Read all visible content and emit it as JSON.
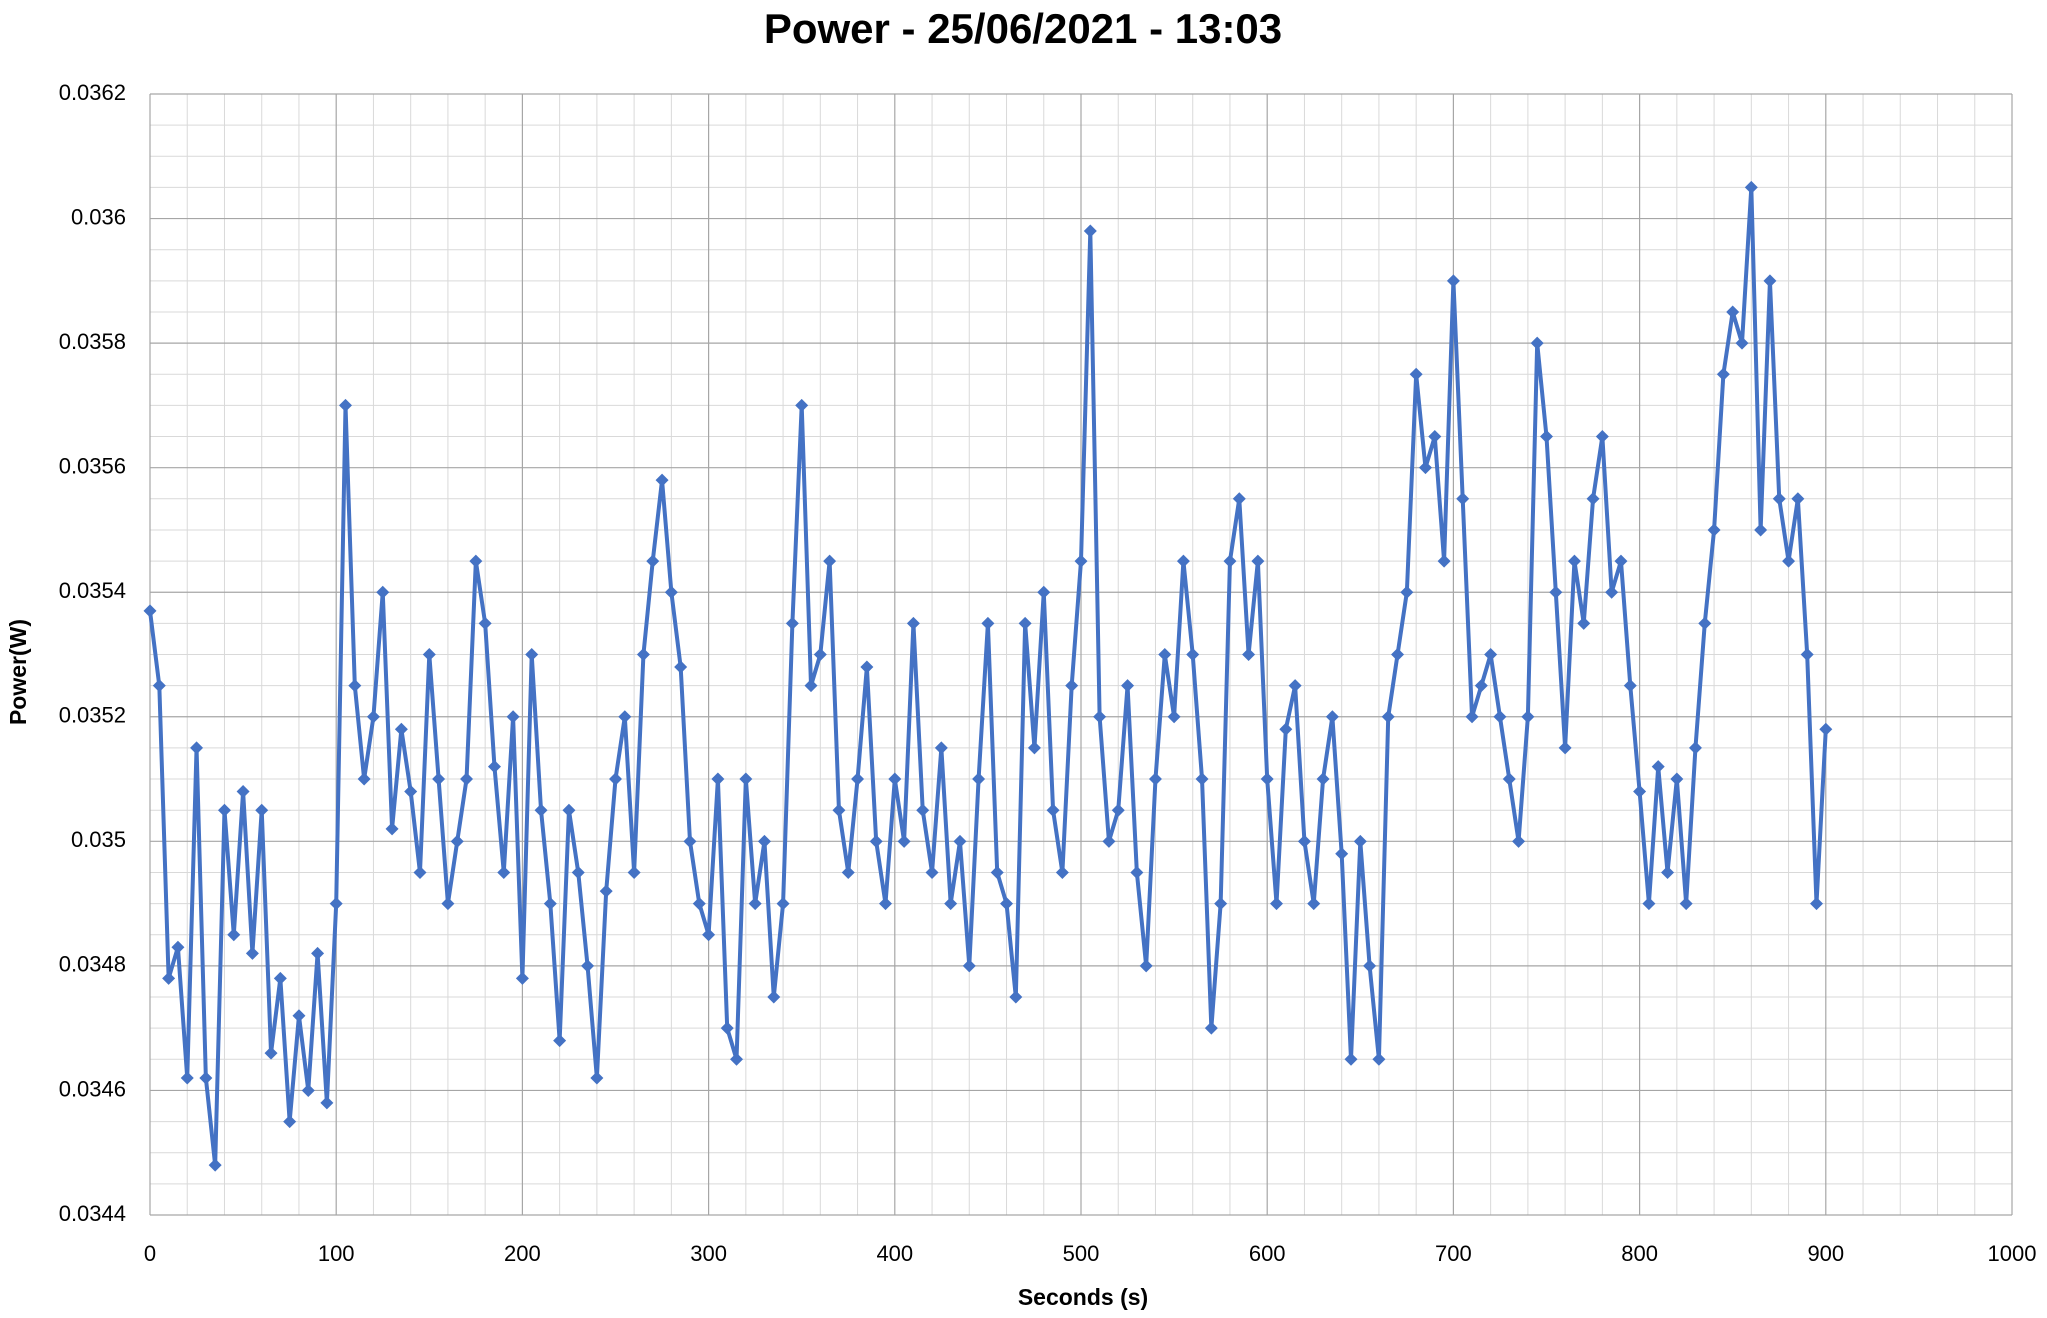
{
  "chart_data": {
    "type": "line",
    "title": "Power - 25/06/2021 - 13:03",
    "x_label": "Seconds (s)",
    "y_label": "Power(W)",
    "xlim": [
      0,
      1000
    ],
    "xticks": [
      0,
      100,
      200,
      300,
      400,
      500,
      600,
      700,
      800,
      900,
      1000
    ],
    "ylim": [
      0.0344,
      0.0362
    ],
    "yticks": [
      0.0344,
      0.0346,
      0.0348,
      0.035,
      0.0352,
      0.0354,
      0.0356,
      0.0358,
      0.036,
      0.0362
    ],
    "grid": true,
    "minor_grid": true,
    "marker": "diamond",
    "series": [
      {
        "name": "Power",
        "color": "#4472c4",
        "x": [
          0,
          5,
          10,
          15,
          20,
          25,
          30,
          35,
          40,
          45,
          50,
          55,
          60,
          65,
          70,
          75,
          80,
          85,
          90,
          95,
          100,
          105,
          110,
          115,
          120,
          125,
          130,
          135,
          140,
          145,
          150,
          155,
          160,
          165,
          170,
          175,
          180,
          185,
          190,
          195,
          200,
          205,
          210,
          215,
          220,
          225,
          230,
          235,
          240,
          245,
          250,
          255,
          260,
          265,
          270,
          275,
          280,
          285,
          290,
          295,
          300,
          305,
          310,
          315,
          320,
          325,
          330,
          335,
          340,
          345,
          350,
          355,
          360,
          365,
          370,
          375,
          380,
          385,
          390,
          395,
          400,
          405,
          410,
          415,
          420,
          425,
          430,
          435,
          440,
          445,
          450,
          455,
          460,
          465,
          470,
          475,
          480,
          485,
          490,
          495,
          500,
          505,
          510,
          515,
          520,
          525,
          530,
          535,
          540,
          545,
          550,
          555,
          560,
          565,
          570,
          575,
          580,
          585,
          590,
          595,
          600,
          605,
          610,
          615,
          620,
          625,
          630,
          635,
          640,
          645,
          650,
          655,
          660,
          665,
          670,
          675,
          680,
          685,
          690,
          695,
          700,
          705,
          710,
          715,
          720,
          725,
          730,
          735,
          740,
          745,
          750,
          755,
          760,
          765,
          770,
          775,
          780,
          785,
          790,
          795,
          800,
          805,
          810,
          815,
          820,
          825,
          830,
          835,
          840,
          845,
          850,
          855,
          860,
          865,
          870,
          875,
          880,
          885,
          890,
          895,
          900
        ],
        "values": [
          0.03537,
          0.03525,
          0.03478,
          0.03483,
          0.03462,
          0.03515,
          0.03462,
          0.03448,
          0.03505,
          0.03485,
          0.03508,
          0.03482,
          0.03505,
          0.03466,
          0.03478,
          0.03455,
          0.03472,
          0.0346,
          0.03482,
          0.03458,
          0.0349,
          0.0357,
          0.03525,
          0.0351,
          0.0352,
          0.0354,
          0.03502,
          0.03518,
          0.03508,
          0.03495,
          0.0353,
          0.0351,
          0.0349,
          0.035,
          0.0351,
          0.03545,
          0.03535,
          0.03512,
          0.03495,
          0.0352,
          0.03478,
          0.0353,
          0.03505,
          0.0349,
          0.03468,
          0.03505,
          0.03495,
          0.0348,
          0.03462,
          0.03492,
          0.0351,
          0.0352,
          0.03495,
          0.0353,
          0.03545,
          0.03558,
          0.0354,
          0.03528,
          0.035,
          0.0349,
          0.03485,
          0.0351,
          0.0347,
          0.03465,
          0.0351,
          0.0349,
          0.035,
          0.03475,
          0.0349,
          0.03535,
          0.0357,
          0.03525,
          0.0353,
          0.03545,
          0.03505,
          0.03495,
          0.0351,
          0.03528,
          0.035,
          0.0349,
          0.0351,
          0.035,
          0.03535,
          0.03505,
          0.03495,
          0.03515,
          0.0349,
          0.035,
          0.0348,
          0.0351,
          0.03535,
          0.03495,
          0.0349,
          0.03475,
          0.03535,
          0.03515,
          0.0354,
          0.03505,
          0.03495,
          0.03525,
          0.03545,
          0.03598,
          0.0352,
          0.035,
          0.03505,
          0.03525,
          0.03495,
          0.0348,
          0.0351,
          0.0353,
          0.0352,
          0.03545,
          0.0353,
          0.0351,
          0.0347,
          0.0349,
          0.03545,
          0.03555,
          0.0353,
          0.03545,
          0.0351,
          0.0349,
          0.03518,
          0.03525,
          0.035,
          0.0349,
          0.0351,
          0.0352,
          0.03498,
          0.03465,
          0.035,
          0.0348,
          0.03465,
          0.0352,
          0.0353,
          0.0354,
          0.03575,
          0.0356,
          0.03565,
          0.03545,
          0.0359,
          0.03555,
          0.0352,
          0.03525,
          0.0353,
          0.0352,
          0.0351,
          0.035,
          0.0352,
          0.0358,
          0.03565,
          0.0354,
          0.03515,
          0.03545,
          0.03535,
          0.03555,
          0.03565,
          0.0354,
          0.03545,
          0.03525,
          0.03508,
          0.0349,
          0.03512,
          0.03495,
          0.0351,
          0.0349,
          0.03515,
          0.03535,
          0.0355,
          0.03575,
          0.03585,
          0.0358,
          0.03605,
          0.0355,
          0.0359,
          0.03555,
          0.03545,
          0.03555,
          0.0353,
          0.0349,
          0.03518
        ]
      }
    ]
  }
}
